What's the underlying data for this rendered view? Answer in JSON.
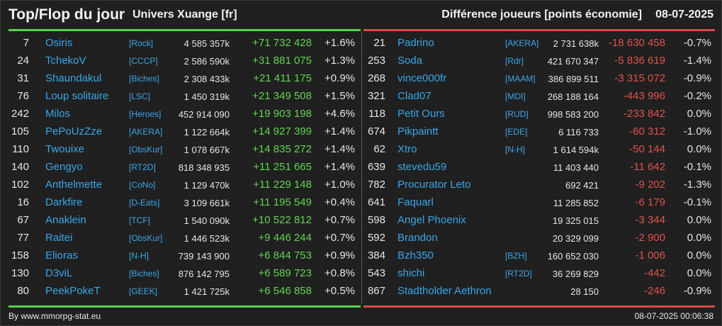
{
  "header": {
    "title": "Top/Flop du jour",
    "universe": "Univers Xuange [fr]",
    "metric": "Différence joueurs [points économie]",
    "date": "08-07-2025"
  },
  "colors": {
    "top_accent": "#57d34b",
    "flop_accent": "#d84a45",
    "name_link": "#3aa6e8",
    "background": "#202020"
  },
  "top": [
    {
      "rank": "7",
      "name": "Osiris",
      "alliance": "[Rock]",
      "points": "4 585 357k",
      "diff": "+71 732 428",
      "pct": "+1.6%"
    },
    {
      "rank": "24",
      "name": "TchekoV",
      "alliance": "[CCCP]",
      "points": "2 586 590k",
      "diff": "+31 881 075",
      "pct": "+1.3%"
    },
    {
      "rank": "31",
      "name": "Shaundakul",
      "alliance": "[Biches]",
      "points": "2 308 433k",
      "diff": "+21 411 175",
      "pct": "+0.9%"
    },
    {
      "rank": "76",
      "name": "Loup solitaire",
      "alliance": "[LSC]",
      "points": "1 450 319k",
      "diff": "+21 349 508",
      "pct": "+1.5%"
    },
    {
      "rank": "242",
      "name": "Milos",
      "alliance": "[Heroes]",
      "points": "452 914 090",
      "diff": "+19 903 198",
      "pct": "+4.6%"
    },
    {
      "rank": "105",
      "name": "PePoUzZze",
      "alliance": "[AKERA]",
      "points": "1 122 664k",
      "diff": "+14 927 399",
      "pct": "+1.4%"
    },
    {
      "rank": "110",
      "name": "Twouixe",
      "alliance": "[ObsKur]",
      "points": "1 078 667k",
      "diff": "+14 835 272",
      "pct": "+1.4%"
    },
    {
      "rank": "140",
      "name": "Gengyo",
      "alliance": "[RT2D]",
      "points": "818 348 935",
      "diff": "+11 251 665",
      "pct": "+1.4%"
    },
    {
      "rank": "102",
      "name": "Anthelmette",
      "alliance": "[CoNo]",
      "points": "1 129 470k",
      "diff": "+11 229 148",
      "pct": "+1.0%"
    },
    {
      "rank": "16",
      "name": "Darkfire",
      "alliance": "[D-Eats]",
      "points": "3 109 661k",
      "diff": "+11 195 549",
      "pct": "+0.4%"
    },
    {
      "rank": "67",
      "name": "Anaklein",
      "alliance": "[TCF]",
      "points": "1 540 090k",
      "diff": "+10 522 812",
      "pct": "+0.7%"
    },
    {
      "rank": "77",
      "name": "Raitei",
      "alliance": "[ObsKur]",
      "points": "1 446 523k",
      "diff": "+9 446 244",
      "pct": "+0.7%"
    },
    {
      "rank": "158",
      "name": "Elioras",
      "alliance": "[N-H]",
      "points": "739 143 900",
      "diff": "+6 844 753",
      "pct": "+0.9%"
    },
    {
      "rank": "130",
      "name": "D3viL",
      "alliance": "[Biches]",
      "points": "876 142 795",
      "diff": "+6 589 723",
      "pct": "+0.8%"
    },
    {
      "rank": "80",
      "name": "PeekPokeT",
      "alliance": "[GEEK]",
      "points": "1 421 725k",
      "diff": "+6 546 858",
      "pct": "+0.5%"
    }
  ],
  "flop": [
    {
      "rank": "21",
      "name": "Padrino",
      "alliance": "[AKERA]",
      "points": "2 731 638k",
      "diff": "-18 630 458",
      "pct": "-0.7%"
    },
    {
      "rank": "253",
      "name": "Soda",
      "alliance": "[Rdr]",
      "points": "421 670 347",
      "diff": "-5 836 619",
      "pct": "-1.4%"
    },
    {
      "rank": "268",
      "name": "vince000fr",
      "alliance": "[MAAM]",
      "points": "386 899 511",
      "diff": "-3 315 072",
      "pct": "-0.9%"
    },
    {
      "rank": "321",
      "name": "Clad07",
      "alliance": "[MDI]",
      "points": "268 188 164",
      "diff": "-443 996",
      "pct": "-0.2%"
    },
    {
      "rank": "118",
      "name": "Petit Ours",
      "alliance": "[RUD]",
      "points": "998 583 200",
      "diff": "-233 842",
      "pct": "0.0%"
    },
    {
      "rank": "674",
      "name": "Pikpaintt",
      "alliance": "[EDE]",
      "points": "6 116 733",
      "diff": "-60 312",
      "pct": "-1.0%"
    },
    {
      "rank": "62",
      "name": "Xtro",
      "alliance": "[N-H]",
      "points": "1 614 594k",
      "diff": "-50 144",
      "pct": "0.0%"
    },
    {
      "rank": "639",
      "name": "stevedu59",
      "alliance": "",
      "points": "11 403 440",
      "diff": "-11 642",
      "pct": "-0.1%"
    },
    {
      "rank": "782",
      "name": "Procurator Leto",
      "alliance": "",
      "points": "692 421",
      "diff": "-9 202",
      "pct": "-1.3%"
    },
    {
      "rank": "641",
      "name": "Faquarl",
      "alliance": "",
      "points": "11 285 852",
      "diff": "-6 179",
      "pct": "-0.1%"
    },
    {
      "rank": "598",
      "name": "Angel Phoenix",
      "alliance": "",
      "points": "19 325 015",
      "diff": "-3 344",
      "pct": "0.0%"
    },
    {
      "rank": "592",
      "name": "Brandon",
      "alliance": "",
      "points": "20 329 099",
      "diff": "-2 900",
      "pct": "0.0%"
    },
    {
      "rank": "384",
      "name": "Bzh350",
      "alliance": "[BZH]",
      "points": "160 652 030",
      "diff": "-1 006",
      "pct": "0.0%"
    },
    {
      "rank": "543",
      "name": "shichi",
      "alliance": "[RT2D]",
      "points": "36 269 829",
      "diff": "-442",
      "pct": "0.0%"
    },
    {
      "rank": "867",
      "name": "Stadtholder Aethron",
      "alliance": "",
      "points": "28 150",
      "diff": "-246",
      "pct": "-0.9%"
    }
  ],
  "footer": {
    "source": "By www.mmorpg-stat.eu",
    "timestamp": "08-07-2025 00:06:38"
  }
}
